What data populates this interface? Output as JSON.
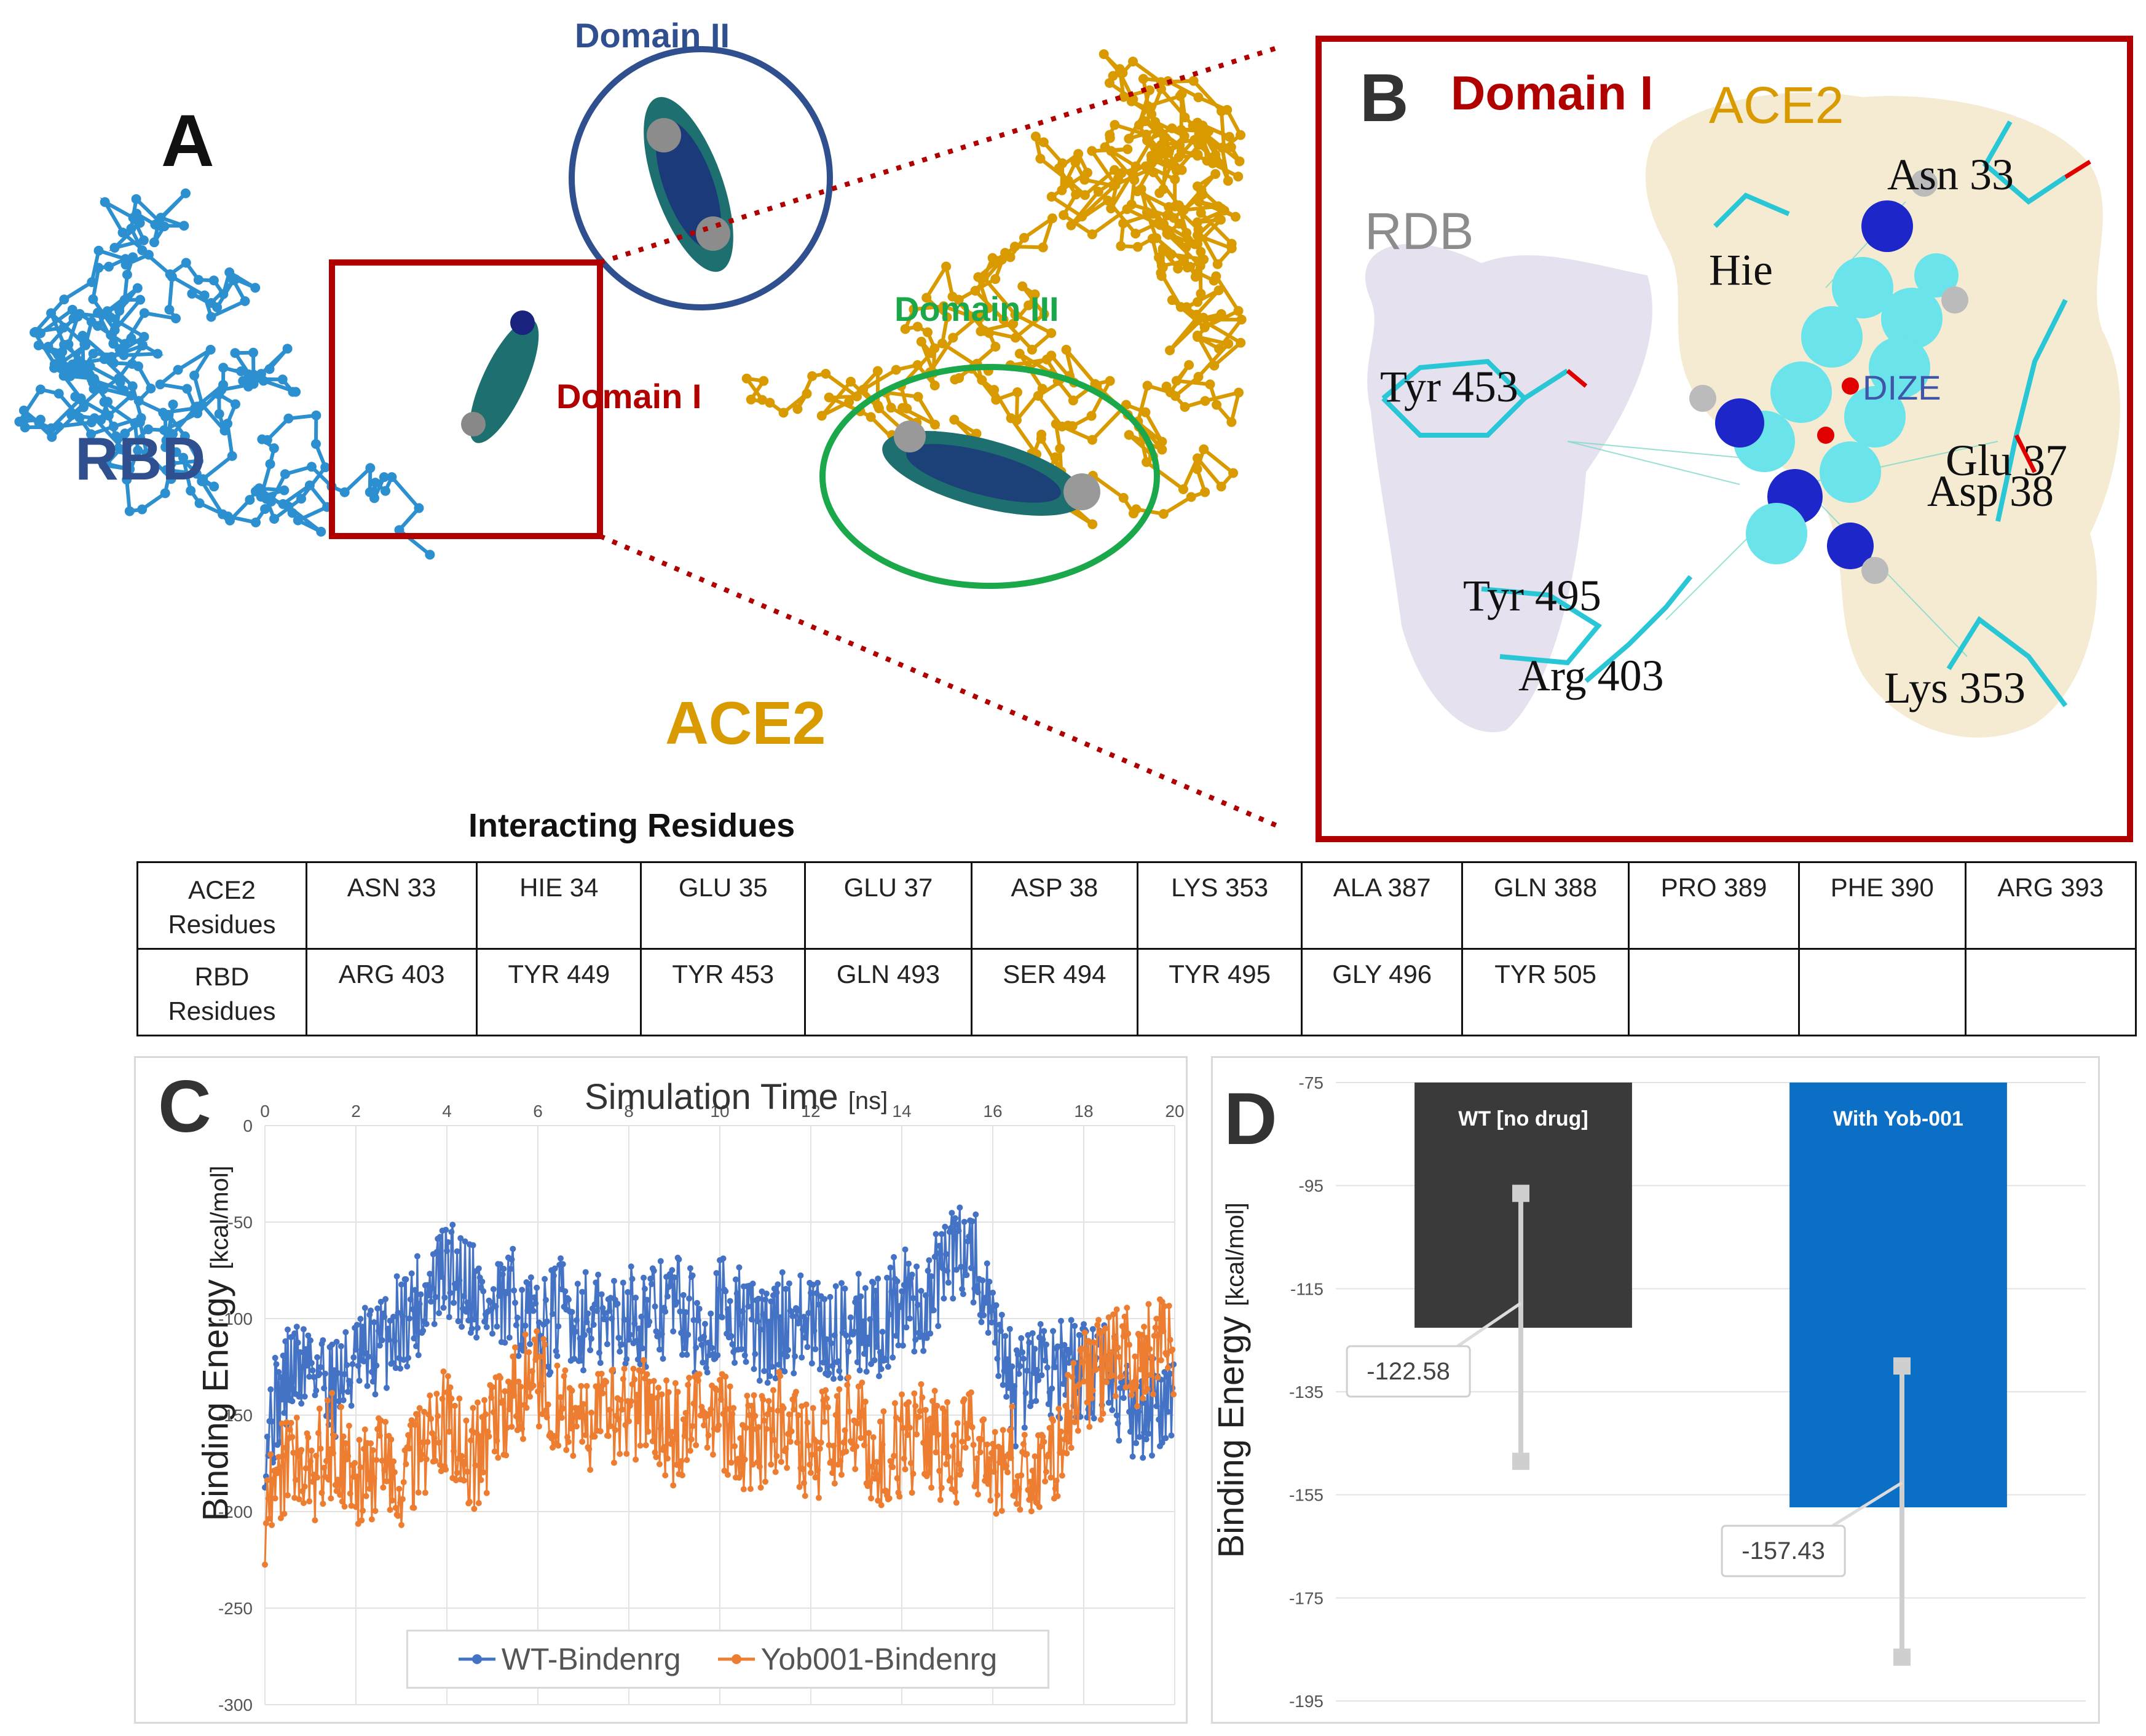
{
  "panel_a": {
    "letter": "A",
    "domain_ii": "Domain II",
    "domain_iii": "Domain III",
    "domain_i": "Domain I",
    "rbd": "RBD",
    "ace2": "ACE2"
  },
  "panel_b": {
    "letter": "B",
    "domain_i": "Domain I",
    "ace2": "ACE2",
    "rdb": "RDB",
    "dize": "DIZE",
    "residues": {
      "asn33": "Asn 33",
      "hie": "Hie",
      "tyr453": "Tyr 453",
      "glu37": "Glu 37",
      "asp38": "Asp 38",
      "tyr495": "Tyr 495",
      "arg403": "Arg 403",
      "lys353": "Lys 353"
    }
  },
  "table": {
    "title": "Interacting Residues",
    "rows": [
      {
        "header": "ACE2\nResidues",
        "cells": [
          "ASN 33",
          "HIE 34",
          "GLU 35",
          "GLU 37",
          "ASP 38",
          "LYS 353",
          "ALA 387",
          "GLN 388",
          "PRO 389",
          "PHE 390",
          "ARG 393"
        ]
      },
      {
        "header": "RBD\nResidues",
        "cells": [
          "ARG 403",
          "TYR 449",
          "TYR 453",
          "GLN 493",
          "SER 494",
          "TYR 495",
          "GLY 496",
          "TYR 505",
          "",
          "",
          ""
        ]
      }
    ]
  },
  "colors": {
    "rbd_blue": "#2c8fd0",
    "ace2_gold": "#d99a00",
    "domain_ii_ring": "#2f4f8f",
    "domain_iii_ring": "#1aa84a",
    "domain_i_red": "#b00000",
    "wt_series": "#4472c4",
    "yob_series": "#ed7d31",
    "bar_wt": "#3a3a3a",
    "bar_yob": "#0b6fc6"
  },
  "chart_data": [
    {
      "id": "C",
      "type": "line",
      "letter": "C",
      "title": "Simulation Time",
      "title_unit": "[ns]",
      "xlabel": "Simulation Time [ns]",
      "ylabel": "Binding Energy",
      "ylabel_unit": "[kcal/mol]",
      "xlim": [
        0,
        20
      ],
      "ylim": [
        -300,
        0
      ],
      "x_ticks": [
        0,
        2,
        4,
        6,
        8,
        10,
        12,
        14,
        16,
        18,
        20
      ],
      "y_ticks": [
        0,
        -50,
        -100,
        -150,
        -200,
        -250,
        -300
      ],
      "x_axis_position": "top",
      "legend": "bottom-center",
      "series": [
        {
          "name": "WT-Bindenrg",
          "x": [
            0,
            0.5,
            1,
            1.5,
            2,
            2.5,
            3,
            3.5,
            4,
            4.5,
            5,
            5.5,
            6,
            6.5,
            7,
            7.5,
            8,
            8.5,
            9,
            9.5,
            10,
            10.5,
            11,
            11.5,
            12,
            12.5,
            13,
            13.5,
            14,
            14.5,
            15,
            15.5,
            16,
            16.5,
            17,
            17.5,
            18,
            18.5,
            19,
            19.5,
            20
          ],
          "values": [
            -160,
            -130,
            -120,
            -135,
            -125,
            -115,
            -100,
            -90,
            -75,
            -80,
            -100,
            -90,
            -110,
            -95,
            -100,
            -105,
            -95,
            -100,
            -90,
            -105,
            -95,
            -100,
            -110,
            -100,
            -105,
            -110,
            -100,
            -105,
            -90,
            -95,
            -70,
            -60,
            -110,
            -140,
            -120,
            -125,
            -130,
            -120,
            -150,
            -145,
            -150
          ]
        },
        {
          "name": "Yob001-Bindenrg",
          "x": [
            0,
            0.5,
            1,
            1.5,
            2,
            2.5,
            3,
            3.5,
            4,
            4.5,
            5,
            5.5,
            6,
            6.5,
            7,
            7.5,
            8,
            8.5,
            9,
            9.5,
            10,
            10.5,
            11,
            11.5,
            12,
            12.5,
            13,
            13.5,
            14,
            14.5,
            15,
            15.5,
            16,
            16.5,
            17,
            17.5,
            18,
            18.5,
            19,
            19.5,
            20
          ],
          "values": [
            -200,
            -170,
            -180,
            -165,
            -185,
            -175,
            -180,
            -170,
            -150,
            -175,
            -160,
            -140,
            -130,
            -145,
            -150,
            -155,
            -145,
            -150,
            -160,
            -150,
            -155,
            -165,
            -160,
            -150,
            -170,
            -160,
            -155,
            -175,
            -165,
            -160,
            -170,
            -165,
            -175,
            -170,
            -180,
            -165,
            -130,
            -125,
            -120,
            -115,
            -120
          ]
        }
      ]
    },
    {
      "id": "D",
      "type": "bar",
      "letter": "D",
      "ylabel": "Binding Energy",
      "ylabel_unit": "[kcal/mol]",
      "ylim": [
        -195,
        -75
      ],
      "y_ticks": [
        -75,
        -95,
        -115,
        -135,
        -155,
        -175,
        -195
      ],
      "categories": [
        "WT [no drug]",
        "With Yob-001"
      ],
      "values": [
        -122.58,
        -157.43
      ],
      "data_labels": [
        "-122.58",
        "-157.43"
      ],
      "error_bars": [
        [
          -148.5,
          -96.5
        ],
        [
          -186.5,
          -130.0
        ]
      ]
    }
  ]
}
